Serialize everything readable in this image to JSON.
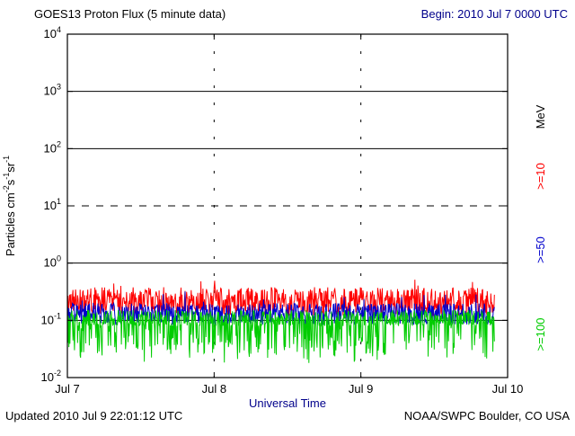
{
  "header": {
    "title": "GOES13 Proton Flux (5 minute data)",
    "begin": "Begin: 2010 Jul 7 0000 UTC"
  },
  "footer": {
    "updated": "Updated 2010 Jul  9 22:01:12 UTC",
    "credit": "NOAA/SWPC Boulder, CO USA"
  },
  "colors": {
    "axis_text": "#000000",
    "accent_text": "#00008b",
    "frame": "#000000",
    "red_series": "#ff0000",
    "blue_series": "#0000cc",
    "green_series": "#00cc00"
  },
  "chart_data": {
    "type": "line",
    "title": "GOES13 Proton Flux (5 minute data)",
    "subtitle": "Begin: 2010 Jul 7 0000 UTC",
    "xlabel": "Universal Time",
    "ylabel": "Particles cm^-2^s^-1^sr^-1",
    "x_ticks": [
      "Jul 7",
      "Jul 8",
      "Jul 9",
      "Jul 10"
    ],
    "x_tick_hours": [
      0,
      24,
      48,
      72
    ],
    "x_range_hours": [
      0,
      72
    ],
    "data_end_hour": 69.9,
    "sample_minutes": 5,
    "ylim_exp": [
      -2,
      4
    ],
    "y_exponents": [
      4,
      3,
      2,
      1,
      0,
      -1,
      -2
    ],
    "grid": {
      "solid_lines_exp": [
        3,
        2,
        0,
        -1
      ],
      "dashed_line_exp": 1,
      "day_gridlines_hours": [
        24,
        48
      ]
    },
    "legend_position": "right",
    "right_axis": {
      "unit_label": "MeV",
      "unit_color": "#000000",
      "series_labels": [
        {
          "text": ">=10",
          "color": "#ff0000"
        },
        {
          "text": ">=50",
          "color": "#0000cc"
        },
        {
          "text": ">=100",
          "color": "#00cc00"
        }
      ]
    },
    "series": [
      {
        "name": ">=10 MeV protons",
        "color": "#ff0000",
        "seed": 1013,
        "base_log": -0.92,
        "spread": 0.5,
        "spike_prob": 0.04,
        "spike_log": 0.12,
        "dip_prob": 0.0,
        "dip_log": 0.0,
        "approx_mean_flux": 0.21,
        "approx_range_flux": [
          0.12,
          0.55
        ]
      },
      {
        "name": ">=50 MeV protons",
        "color": "#0000cc",
        "seed": 2050,
        "base_log": -1.08,
        "spread": 0.38,
        "spike_prob": 0.03,
        "spike_log": 0.2,
        "dip_prob": 0.0,
        "dip_log": 0.0,
        "approx_mean_flux": 0.13,
        "approx_range_flux": [
          0.08,
          0.35
        ]
      },
      {
        "name": ">=100 MeV protons",
        "color": "#00cc00",
        "seed": 3100,
        "base_log": -1.1,
        "spread": 0.28,
        "spike_prob": 0.0,
        "spike_log": 0.0,
        "dip_prob": 0.28,
        "dip_log": 0.55,
        "approx_mean_flux": 0.1,
        "approx_range_flux": [
          0.02,
          0.13
        ]
      }
    ]
  }
}
